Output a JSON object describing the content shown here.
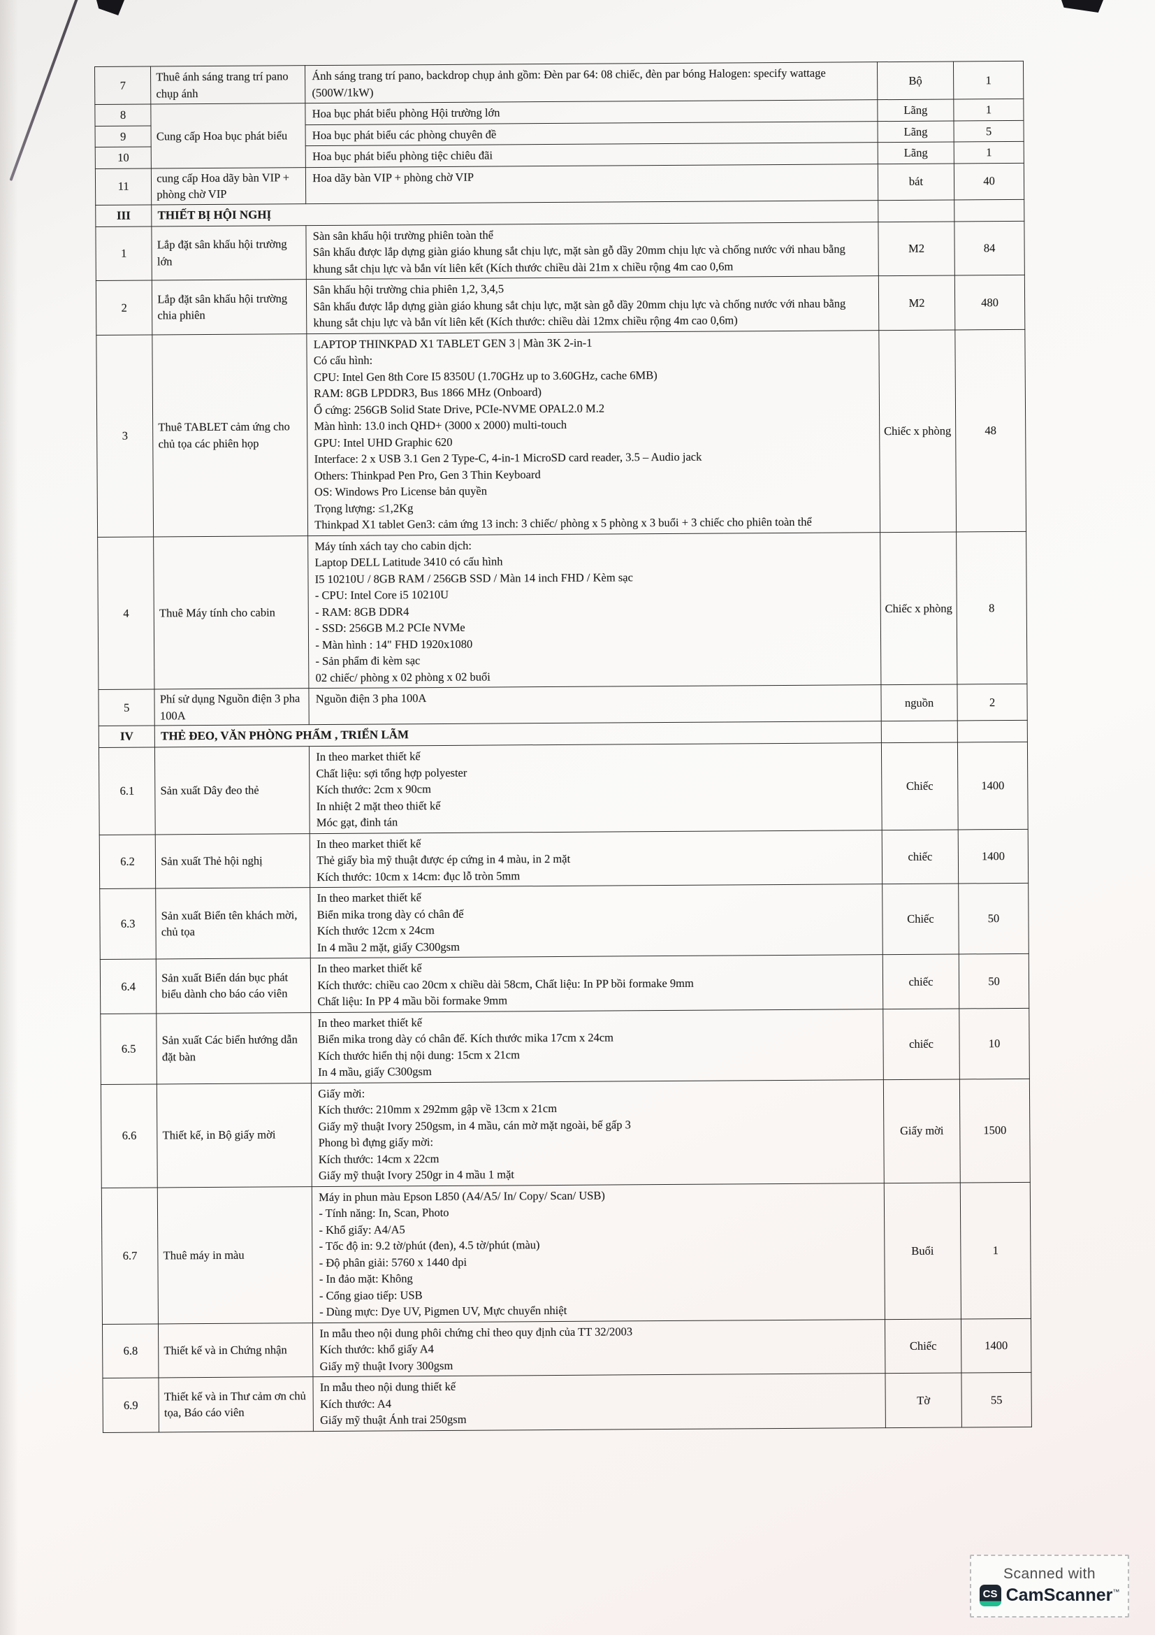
{
  "table": {
    "rows": [
      {
        "kind": "item",
        "id": "7",
        "name": "Thuê ánh sáng trang trí pano chụp ánh",
        "desc": [
          "Ánh sáng trang trí pano, backdrop chụp ảnh gồm: Đèn par 64: 08 chiếc, đèn par bóng Halogen: specify wattage (500W/1kW)"
        ],
        "unit": "Bộ",
        "qty": "1"
      },
      {
        "kind": "item",
        "id": "8",
        "name": "Cung cấp Hoa bục phát biểu",
        "name_rowspan": 3,
        "desc": [
          "Hoa bục phát biểu phòng Hội trường  lớn"
        ],
        "unit": "Lãng",
        "qty": "1"
      },
      {
        "kind": "item",
        "id": "9",
        "desc": [
          "Hoa bục phát biểu các phòng chuyên đề"
        ],
        "unit": "Lãng",
        "qty": "5"
      },
      {
        "kind": "item",
        "id": "10",
        "desc": [
          "Hoa bục phát biểu phòng tiệc chiêu đãi"
        ],
        "unit": "Lãng",
        "qty": "1"
      },
      {
        "kind": "item",
        "id": "11",
        "name": "cung cấp Hoa dãy bàn VIP + phòng chờ VIP",
        "desc": [
          "Hoa dãy bàn VIP + phòng chờ VIP"
        ],
        "unit": "bát",
        "qty": "40"
      },
      {
        "kind": "section",
        "id": "III",
        "title": "THIẾT BỊ HỘI NGHỊ"
      },
      {
        "kind": "item",
        "id": "1",
        "name": "Lắp đặt sân khấu hội trường lớn",
        "desc": [
          "Sàn sân khấu hội trường phiên toàn thể",
          "Sân khấu được lắp dựng giàn giáo khung sắt chịu lực, mặt sàn gỗ dầy 20mm chịu lực và chống nước với nhau bằng khung sắt chịu lực và bắn vít liên kết (Kích thước chiều dài 21m x chiều rộng 4m cao 0,6m"
        ],
        "unit": "M2",
        "qty": "84"
      },
      {
        "kind": "item",
        "id": "2",
        "name": "Lắp đặt sân khấu hội trường chia phiên",
        "desc": [
          "Sân khấu hội trường chia phiên 1,2, 3,4,5",
          "Sân khấu được lắp dựng giàn giáo khung sắt chịu lực, mặt sàn gỗ dầy 20mm chịu lực và chống nước với nhau bằng khung sắt chịu lực và bắn vít liên kết (Kích thước: chiều dài 12mx chiều rộng 4m cao 0,6m)"
        ],
        "unit": "M2",
        "qty": "480"
      },
      {
        "kind": "item",
        "id": "3",
        "name": "Thuê  TABLET cảm ứng cho chủ tọa các phiên họp",
        "desc": [
          "LAPTOP THINKPAD X1 TABLET GEN 3 | Màn 3K 2-in-1",
          "Có cấu hình:",
          "CPU: Intel Gen 8th Core I5 8350U (1.70GHz up to 3.60GHz, cache 6MB)",
          "RAM: 8GB LPDDR3, Bus 1866 MHz (Onboard)",
          "Ổ cứng: 256GB Solid State Drive, PCIe-NVME OPAL2.0 M.2",
          "Màn hình: 13.0 inch QHD+ (3000 x 2000) multi-touch",
          "GPU: Intel UHD Graphic 620",
          "Interface: 2 x USB 3.1 Gen 2 Type-C, 4-in-1 MicroSD card reader, 3.5 – Audio jack",
          "Others: Thinkpad Pen Pro, Gen 3 Thin Keyboard",
          "OS: Windows Pro License bản quyền",
          "Trọng lượng: ≤1,2Kg",
          "Thinkpad X1 tablet Gen3:  cảm ứng 13 inch: 3 chiếc/ phòng x 5 phòng x 3 buổi + 3 chiếc cho phiên toàn thể"
        ],
        "unit": "Chiếc x phòng",
        "qty": "48"
      },
      {
        "kind": "item",
        "id": "4",
        "name": "Thuê Máy tính cho cabin",
        "desc": [
          "Máy tính xách tay cho cabin dịch:",
          "Laptop DELL Latitude 3410 có cấu hình",
          "I5 10210U / 8GB RAM / 256GB SSD / Màn 14 inch FHD / Kèm sạc",
          "- CPU: Intel Core i5 10210U",
          "- RAM: 8GB DDR4",
          "- SSD: 256GB M.2 PCIe NVMe",
          "- Màn hình : 14\" FHD 1920x1080",
          "- Sản phẩm đi kèm sạc",
          "02 chiếc/ phòng  x 02 phòng x 02 buổi"
        ],
        "unit": "Chiếc x phòng",
        "qty": "8"
      },
      {
        "kind": "item",
        "id": "5",
        "name": "Phí sử dụng Nguồn điện 3 pha 100A",
        "desc": [
          "Nguồn điện 3 pha 100A"
        ],
        "unit": "nguồn",
        "qty": "2"
      },
      {
        "kind": "section",
        "id": "IV",
        "title": "THẺ ĐEO, VĂN PHÒNG PHẨM , TRIỂN LÃM"
      },
      {
        "kind": "item",
        "id": "6.1",
        "name": "Sản xuất Dây đeo thẻ",
        "desc": [
          "In theo market thiết kế",
          "Chất liệu: sợi tổng hợp polyester",
          "Kích thước: 2cm x 90cm",
          "In nhiệt 2 mặt theo thiết kế",
          "Móc gạt, đinh tán"
        ],
        "unit": "Chiếc",
        "qty": "1400"
      },
      {
        "kind": "item",
        "id": "6.2",
        "name": "Sản xuất Thẻ hội nghị",
        "desc": [
          "In theo market thiết kế",
          "Thẻ giấy bìa mỹ thuật được ép cứng in 4 màu, in 2 mặt",
          "Kích thước: 10cm x 14cm: đục lỗ tròn 5mm"
        ],
        "unit": "chiếc",
        "qty": "1400"
      },
      {
        "kind": "item",
        "id": "6.3",
        "name": "Sản xuất Biển tên khách mời, chủ tọa",
        "desc": [
          "In theo market thiết kế",
          "Biển mika trong dày có chân đế",
          "Kích thước 12cm x 24cm",
          "In 4 mầu 2 mặt, giấy C300gsm"
        ],
        "unit": "Chiếc",
        "qty": "50"
      },
      {
        "kind": "item",
        "id": "6.4",
        "name": "Sản xuất Biển dán bục phát biểu dành cho báo cáo viên",
        "desc": [
          "In theo market thiết kế",
          "Kích thước: chiều cao 20cm x chiều dài 58cm, Chất liệu: In PP bồi formake 9mm",
          "Chất liệu: In PP 4 mầu bồi formake 9mm"
        ],
        "unit": "chiếc",
        "qty": "50"
      },
      {
        "kind": "item",
        "id": "6.5",
        "name": "Sản xuất Các biển hướng dẫn đặt bàn",
        "desc": [
          "In theo market thiết kế",
          "Biển mika trong dày có chân đế. Kích thước mika 17cm x 24cm",
          "Kích thước hiển thị nội dung: 15cm x 21cm",
          "In 4 mầu, giấy C300gsm"
        ],
        "unit": "chiếc",
        "qty": "10"
      },
      {
        "kind": "item",
        "id": "6.6",
        "name": "Thiết kế, in Bộ giấy mời",
        "desc": [
          "Giấy mời:",
          "Kích thước: 210mm x 292mm gập về 13cm x 21cm",
          "Giấy mỹ thuật Ivory 250gsm, in 4 mầu, cán mờ mặt ngoài, bế gấp 3",
          "Phong bì đựng giấy mời:",
          "Kích thước: 14cm x 22cm",
          "Giấy mỹ thuật Ivory 250gr in 4 mầu 1 mặt"
        ],
        "unit": "Giấy mời",
        "qty": "1500"
      },
      {
        "kind": "item",
        "id": "6.7",
        "name": "Thuê máy in màu",
        "desc": [
          "Máy in phun màu Epson L850 (A4/A5/ In/ Copy/ Scan/ USB)",
          "- Tính năng: In, Scan, Photo",
          "- Khổ giấy: A4/A5",
          "- Tốc độ in: 9.2 tờ/phút (đen), 4.5 tờ/phút (màu)",
          "- Độ phân giải: 5760 x 1440 dpi",
          "- In đảo mặt: Không",
          "- Cổng giao tiếp: USB",
          "- Dùng mực: Dye UV, Pigmen UV, Mực chuyển nhiệt"
        ],
        "unit": "Buổi",
        "qty": "1"
      },
      {
        "kind": "item",
        "id": "6.8",
        "name": "Thiết kế và in Chứng nhận",
        "desc": [
          "In mẫu theo nội dung phôi chứng chỉ theo quy định của TT 32/2003",
          "Kích thước: khổ giấy A4",
          "Giấy mỹ thuật Ivory 300gsm"
        ],
        "unit": "Chiếc",
        "qty": "1400"
      },
      {
        "kind": "item",
        "id": "6.9",
        "name": "Thiết kế và in Thư cảm ơn chủ tọa, Báo cáo viên",
        "desc": [
          "In mẫu theo nội dung thiết kế",
          "Kích thước: A4",
          "Giấy mỹ thuật Ánh trai 250gsm"
        ],
        "unit": "Tờ",
        "qty": "55"
      }
    ]
  },
  "footer": {
    "scanned_with": "Scanned with",
    "brand": "CamScanner",
    "tm": "™",
    "icon_text": "CS"
  },
  "colors": {
    "ink": "#1c1c1c",
    "paper": "#f8f7f5",
    "badge_navy": "#1d2631",
    "badge_teal": "#20bd90"
  }
}
